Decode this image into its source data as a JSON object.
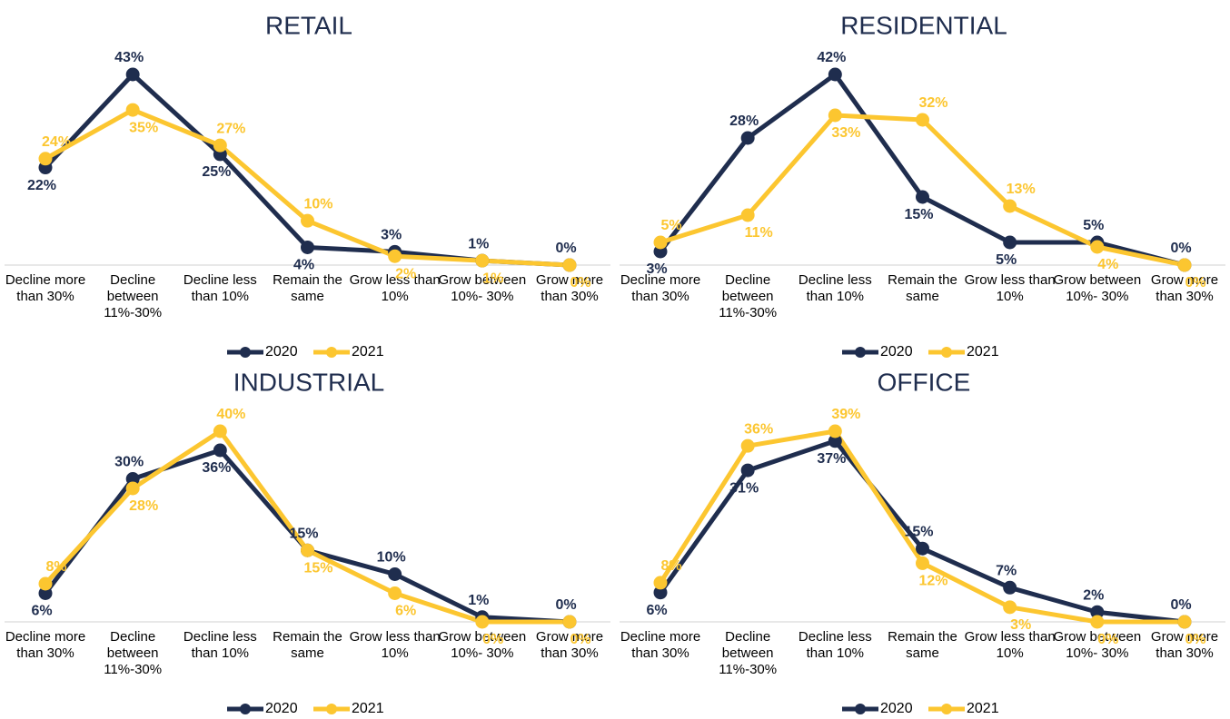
{
  "chart_data": [
    {
      "type": "line",
      "title": "RETAIL",
      "categories": [
        "Decline more than 30%",
        "Decline between 11%-30%",
        "Decline less than 10%",
        "Remain the same",
        "Grow less than 10%",
        "Grow between 10%- 30%",
        "Grow more than 30%"
      ],
      "series": [
        {
          "name": "2020",
          "color": "#1f2d4e",
          "values": [
            22,
            43,
            25,
            4,
            3,
            1,
            0
          ],
          "value_labels": [
            "22%",
            "43%",
            "25%",
            "4%",
            "3%",
            "1%",
            "0%"
          ]
        },
        {
          "name": "2021",
          "color": "#fcc630",
          "values": [
            24,
            35,
            27,
            10,
            2,
            1,
            0
          ],
          "value_labels": [
            "24%",
            "35%",
            "27%",
            "10%",
            "2%",
            "1%",
            "0%"
          ]
        }
      ]
    },
    {
      "type": "line",
      "title": "RESIDENTIAL",
      "categories": [
        "Decline more than 30%",
        "Decline between 11%-30%",
        "Decline less than 10%",
        "Remain the same",
        "Grow less than 10%",
        "Grow between 10%- 30%",
        "Grow more than 30%"
      ],
      "series": [
        {
          "name": "2020",
          "color": "#1f2d4e",
          "values": [
            3,
            28,
            42,
            15,
            5,
            5,
            0
          ],
          "value_labels": [
            "3%",
            "28%",
            "42%",
            "15%",
            "5%",
            "5%",
            "0%"
          ]
        },
        {
          "name": "2021",
          "color": "#fcc630",
          "values": [
            5,
            11,
            33,
            32,
            13,
            4,
            0
          ],
          "value_labels": [
            "5%",
            "11%",
            "33%",
            "32%",
            "13%",
            "4%",
            "0%"
          ]
        }
      ]
    },
    {
      "type": "line",
      "title": "INDUSTRIAL",
      "categories": [
        "Decline more than 30%",
        "Decline between 11%-30%",
        "Decline less than 10%",
        "Remain the same",
        "Grow less than 10%",
        "Grow between 10%- 30%",
        "Grow more than 30%"
      ],
      "series": [
        {
          "name": "2020",
          "color": "#1f2d4e",
          "values": [
            6,
            30,
            36,
            15,
            10,
            1,
            0
          ],
          "value_labels": [
            "6%",
            "30%",
            "36%",
            "15%",
            "10%",
            "1%",
            "0%"
          ]
        },
        {
          "name": "2021",
          "color": "#fcc630",
          "values": [
            8,
            28,
            40,
            15,
            6,
            0,
            0
          ],
          "value_labels": [
            "8%",
            "28%",
            "40%",
            "15%",
            "6%",
            "0%",
            "0%"
          ]
        }
      ]
    },
    {
      "type": "line",
      "title": "OFFICE",
      "categories": [
        "Decline more than 30%",
        "Decline between 11%-30%",
        "Decline less than 10%",
        "Remain the same",
        "Grow less than 10%",
        "Grow between 10%- 30%",
        "Grow more than 30%"
      ],
      "series": [
        {
          "name": "2020",
          "color": "#1f2d4e",
          "values": [
            6,
            31,
            37,
            15,
            7,
            2,
            0
          ],
          "value_labels": [
            "6%",
            "31%",
            "37%",
            "15%",
            "7%",
            "2%",
            "0%"
          ]
        },
        {
          "name": "2021",
          "color": "#fcc630",
          "values": [
            8,
            36,
            39,
            12,
            3,
            0,
            0
          ],
          "value_labels": [
            "8%",
            "36%",
            "39%",
            "12%",
            "3%",
            "0%",
            "0%"
          ]
        }
      ]
    }
  ]
}
